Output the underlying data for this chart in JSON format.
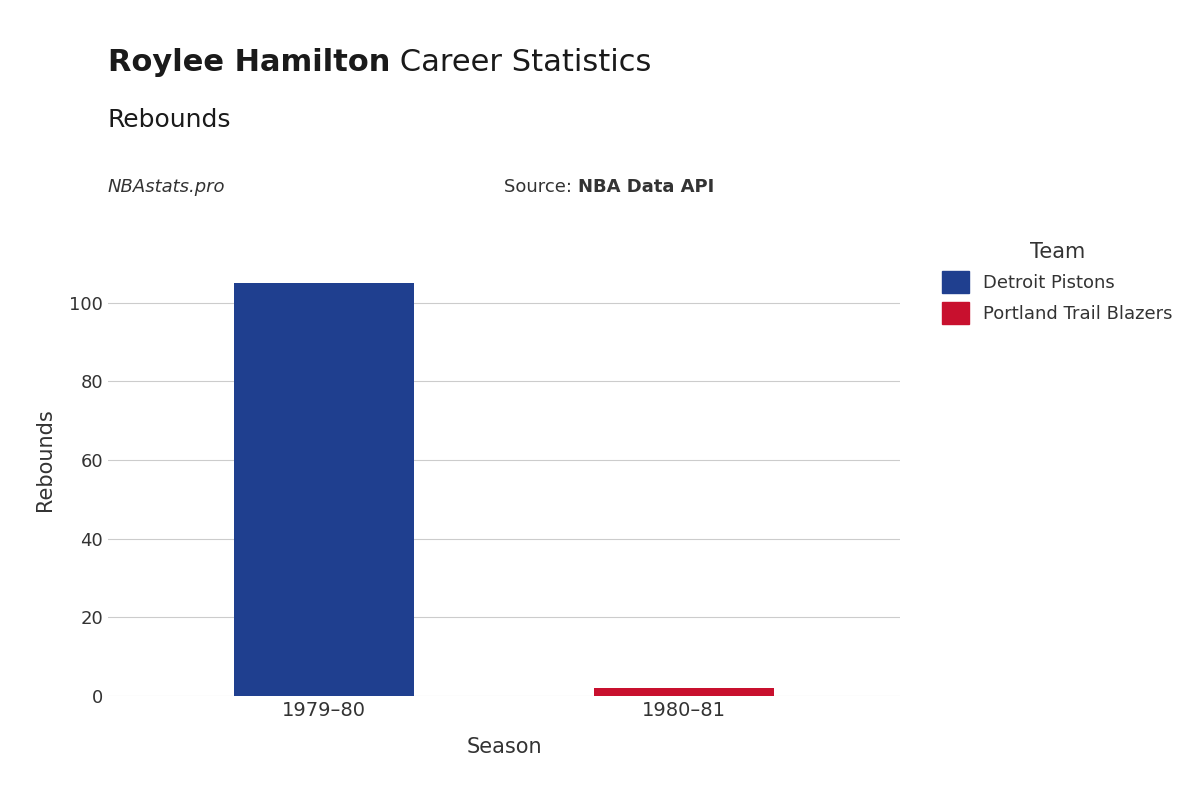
{
  "title_bold": "Roylee Hamilton",
  "title_regular": " Career Statistics",
  "subtitle": "Rebounds",
  "watermark": "NBAstats.pro",
  "source_label": "Source: ",
  "source_value": "NBA Data API",
  "seasons": [
    "1979–80",
    "1980–81"
  ],
  "rebounds": [
    105,
    2
  ],
  "colors": [
    "#1f3f8f",
    "#c8102e"
  ],
  "teams": [
    "Detroit Pistons",
    "Portland Trail Blazers"
  ],
  "xlabel": "Season",
  "ylabel": "Rebounds",
  "ylim": [
    0,
    120
  ],
  "yticks": [
    0,
    20,
    40,
    60,
    80,
    100
  ],
  "bg_color": "#ffffff",
  "grid_color": "#cccccc",
  "text_color": "#333333",
  "dark_text": "#1a1a1a",
  "legend_title": "Team",
  "bar_width": 0.5,
  "title_fontsize": 22,
  "subtitle_fontsize": 18,
  "annot_fontsize": 13
}
